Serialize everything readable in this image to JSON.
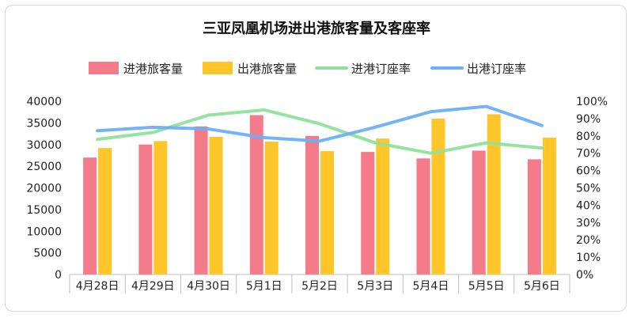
{
  "chart_data": {
    "type": "bar",
    "title": "三亚凤凰机场进出港旅客量及客座率",
    "categories": [
      "4月28日",
      "4月29日",
      "4月30日",
      "5月1日",
      "5月2日",
      "5月3日",
      "5月4日",
      "5月5日",
      "5月6日"
    ],
    "series": [
      {
        "name": "进港旅客量",
        "type": "bar",
        "axis": "left",
        "color": "#f47c8a",
        "values": [
          27000,
          30000,
          34200,
          36800,
          32000,
          28300,
          26800,
          28600,
          26600
        ]
      },
      {
        "name": "出港旅客量",
        "type": "bar",
        "axis": "left",
        "color": "#ffc629",
        "values": [
          29200,
          30800,
          31800,
          30700,
          28500,
          31400,
          36000,
          37000,
          31600
        ]
      },
      {
        "name": "进港订座率",
        "type": "line",
        "axis": "right",
        "color": "#90e09a",
        "values": [
          0.78,
          0.82,
          0.92,
          0.95,
          0.87,
          0.76,
          0.7,
          0.76,
          0.73
        ]
      },
      {
        "name": "出港订座率",
        "type": "line",
        "axis": "right",
        "color": "#6ab0f5",
        "values": [
          0.83,
          0.85,
          0.84,
          0.79,
          0.77,
          0.85,
          0.94,
          0.97,
          0.86
        ]
      }
    ],
    "y_left": {
      "min": 0,
      "max": 40000,
      "ticks": [
        "0",
        "5000",
        "10000",
        "15000",
        "20000",
        "25000",
        "30000",
        "35000",
        "40000"
      ]
    },
    "y_right": {
      "min": 0,
      "max": 1,
      "ticks": [
        "0%",
        "10%",
        "20%",
        "30%",
        "40%",
        "50%",
        "60%",
        "70%",
        "80%",
        "90%",
        "100%"
      ]
    },
    "legend_position": "top",
    "grid": false
  }
}
